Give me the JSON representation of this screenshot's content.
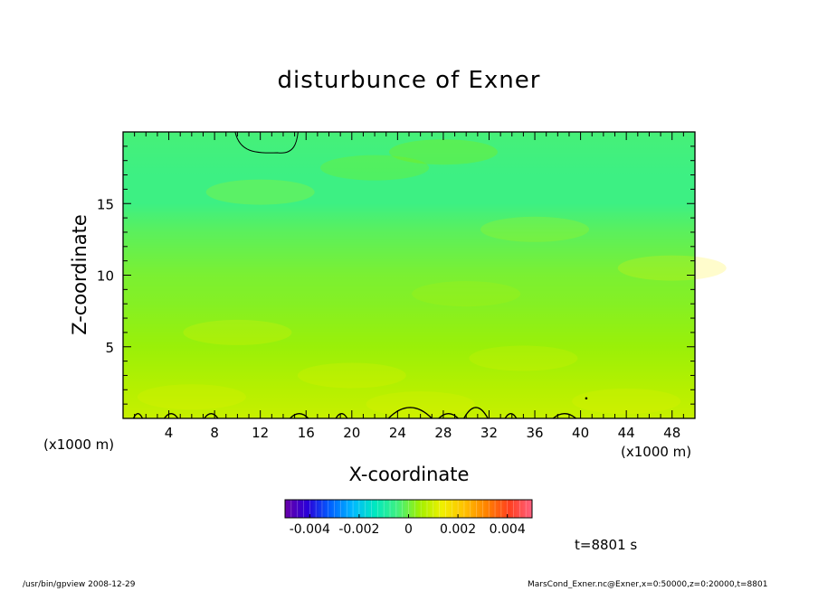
{
  "title": "disturbunce of Exner",
  "footer": {
    "left": "/usr/bin/gpview   2008-12-29",
    "right": "MarsCond_Exner.nc@Exner,x=0:50000,z=0:20000,t=8801"
  },
  "timestamp": "t=8801 s",
  "colors": {
    "field_high": "#8af000",
    "field_mid": "#c8f500",
    "field_low": "#ecf400",
    "field_surface": "#fff200",
    "contour": "#000000",
    "axis": "#000000"
  },
  "chart_data": {
    "type": "heatmap",
    "title": "disturbunce of Exner",
    "xlabel": "X-coordinate",
    "ylabel": "Z-coordinate",
    "x_unit": "(x1000 m)",
    "y_unit": "(x1000 m)",
    "xlim": [
      0,
      50
    ],
    "ylim": [
      0,
      20
    ],
    "xticks": [
      4,
      8,
      12,
      16,
      20,
      24,
      28,
      32,
      36,
      40,
      44,
      48
    ],
    "yticks": [
      5,
      10,
      15
    ],
    "grid": false,
    "field_profile": [
      {
        "z": 0,
        "value": 0.0009
      },
      {
        "z": 2,
        "value": 0.0007
      },
      {
        "z": 5,
        "value": 0.0004
      },
      {
        "z": 8,
        "value": 0.0002
      },
      {
        "z": 10,
        "value": 0.0001
      },
      {
        "z": 13,
        "value": -0.0002
      },
      {
        "z": 15,
        "value": -0.0005
      },
      {
        "z": 17,
        "value": -0.0005
      },
      {
        "z": 20,
        "value": -0.0004
      }
    ],
    "colorbar": {
      "range": [
        -0.005,
        0.005
      ],
      "tick_values": [
        -0.004,
        -0.002,
        0,
        0.002,
        0.004
      ],
      "tick_labels": [
        "-0.004",
        "-0.002",
        "0",
        "0.002",
        "0.004"
      ],
      "colors": [
        "#6a00a8",
        "#2a00d8",
        "#0060ff",
        "#00b8ff",
        "#00e8c0",
        "#40f080",
        "#a0f000",
        "#f0f000",
        "#ffc000",
        "#ff8000",
        "#ff4020",
        "#ff6080"
      ]
    }
  }
}
